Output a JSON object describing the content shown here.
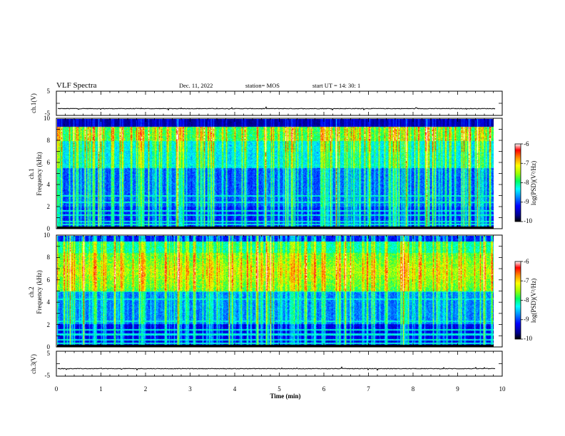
{
  "header": {
    "title": "VLF Spectra",
    "date": "Dec. 11, 2022",
    "station": "station= MOS",
    "start": "start  UT  =   14: 30: 1"
  },
  "chart_data": [
    {
      "type": "line",
      "name": "ch1-waveform",
      "ylabel": "ch.1(V)",
      "ylim": [
        -5,
        5
      ],
      "yticks": [
        "5",
        "-5"
      ],
      "baseline_value": -2.2,
      "xlim": [
        0,
        10
      ]
    },
    {
      "type": "heatmap",
      "name": "ch1-spectrogram",
      "ylabel_line1": "ch.1",
      "ylabel_line2": "Frequency (kHz)",
      "ylim": [
        0,
        10
      ],
      "yticks": [
        "0",
        "2",
        "4",
        "6",
        "8",
        "10"
      ],
      "xlim": [
        0,
        9.85
      ],
      "colorbar": {
        "label": "log(PSD)(V²/Hz)",
        "range": [
          -10,
          -6
        ],
        "ticks": [
          "-6",
          "-7",
          "-8",
          "-9",
          "-10"
        ]
      }
    },
    {
      "type": "heatmap",
      "name": "ch2-spectrogram",
      "ylabel_line1": "ch.2",
      "ylabel_line2": "Frequency (kHz)",
      "ylim": [
        0,
        10
      ],
      "yticks": [
        "0",
        "2",
        "4",
        "6",
        "8",
        "10"
      ],
      "xlim": [
        0,
        9.85
      ],
      "colorbar": {
        "label": "log(PSD)(V²/Hz)",
        "range": [
          -10,
          -6
        ],
        "ticks": [
          "-6",
          "-7",
          "-8",
          "-9",
          "-10"
        ]
      }
    },
    {
      "type": "line",
      "name": "ch3-waveform",
      "ylabel": "ch.3(V)",
      "ylim": [
        -5,
        5
      ],
      "yticks": [
        "5",
        "-5"
      ],
      "baseline_value": -2.0,
      "xlim": [
        0,
        10
      ]
    }
  ],
  "xaxis": {
    "label": "Time  (min)",
    "range": [
      0,
      10
    ],
    "ticks": [
      "0",
      "1",
      "2",
      "3",
      "4",
      "5",
      "6",
      "7",
      "8",
      "9",
      "10"
    ]
  },
  "colors": {
    "background": "#ffffff",
    "axes": "#000000",
    "colormap": [
      "#000000",
      "#00008c",
      "#0000ff",
      "#0090ff",
      "#00ffff",
      "#00ff60",
      "#a0ff00",
      "#ffff00",
      "#ff9000",
      "#ff0000",
      "#ffffff"
    ]
  }
}
